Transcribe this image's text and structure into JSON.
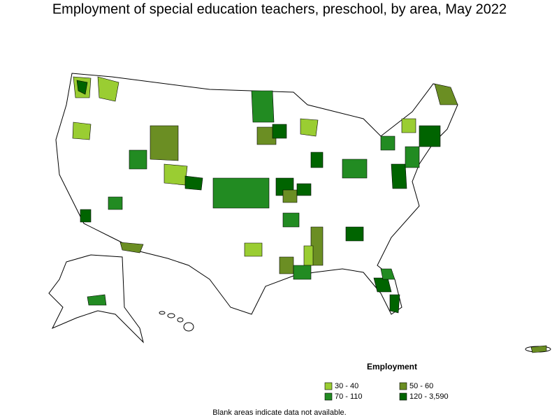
{
  "title": "Employment of special education teachers, preschool, by area, May 2022",
  "legend": {
    "title": "Employment",
    "items": [
      {
        "label": "30 - 40",
        "color": "#9acd32"
      },
      {
        "label": "50 - 60",
        "color": "#6b8e23"
      },
      {
        "label": "70 - 110",
        "color": "#228b22"
      },
      {
        "label": "120 - 3,590",
        "color": "#006400"
      }
    ]
  },
  "note": "Blank areas indicate data not available."
}
